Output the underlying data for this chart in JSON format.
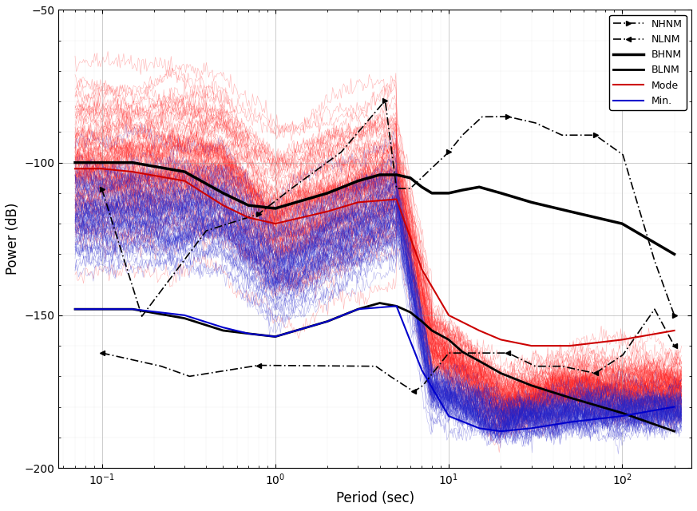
{
  "xlabel": "Period (sec)",
  "ylabel": "Power (dB)",
  "ylim": [
    -200,
    -50
  ],
  "yticks": [
    -200,
    -150,
    -100,
    -50
  ],
  "background_color": "#ffffff",
  "nhnm_color": "#000000",
  "nlnm_color": "#000000",
  "bhnm_color": "#000000",
  "blnm_color": "#000000",
  "mode_color": "#cc0000",
  "min_color": "#0000cc",
  "noise_red_color": "#ff2222",
  "noise_blue_color": "#2222cc",
  "legend_labels": [
    "NHNM",
    "NLNM",
    "BHNM",
    "BLNM",
    "Mode",
    "Min."
  ],
  "nhnm_p": [
    0.1,
    0.17,
    0.4,
    0.8,
    1.24,
    2.4,
    4.3,
    5.0,
    6.0,
    10.0,
    12.0,
    15.6,
    21.9,
    31.6,
    45.0,
    70.0,
    101.0,
    154.0,
    200.0
  ],
  "nhnm_v": [
    -108.73,
    -150.34,
    -122.31,
    -116.85,
    -108.48,
    -96.55,
    -79.68,
    -108.48,
    -108.48,
    -96.55,
    -91.0,
    -85.0,
    -84.94,
    -87.0,
    -91.0,
    -91.0,
    -97.41,
    -132.18,
    -150.0
  ],
  "nlnm_p": [
    0.1,
    0.22,
    0.32,
    0.8,
    3.8,
    4.6,
    6.3,
    7.1,
    10.0,
    22.0,
    31.6,
    45.0,
    70.0,
    101.0,
    154.0,
    200.0
  ],
  "nlnm_v": [
    -162.36,
    -166.7,
    -170.0,
    -166.4,
    -166.7,
    -170.0,
    -175.0,
    -173.0,
    -162.36,
    -162.36,
    -166.7,
    -166.7,
    -169.0,
    -163.0,
    -148.0,
    -160.0
  ],
  "bhnm_p": [
    0.07,
    0.1,
    0.15,
    0.3,
    0.5,
    0.7,
    1.0,
    2.0,
    3.0,
    4.0,
    5.0,
    6.0,
    7.0,
    8.0,
    10.0,
    12.0,
    15.0,
    20.0,
    30.0,
    50.0,
    100.0,
    200.0
  ],
  "bhnm_v": [
    -100,
    -100,
    -100,
    -103,
    -110,
    -114,
    -115,
    -110,
    -106,
    -104,
    -104,
    -105,
    -108,
    -110,
    -110,
    -109,
    -108,
    -110,
    -113,
    -116,
    -120,
    -130
  ],
  "blnm_p": [
    0.07,
    0.1,
    0.15,
    0.3,
    0.5,
    0.7,
    1.0,
    2.0,
    3.0,
    4.0,
    5.0,
    6.0,
    7.0,
    8.0,
    10.0,
    12.0,
    15.0,
    20.0,
    30.0,
    50.0,
    100.0,
    200.0
  ],
  "blnm_v": [
    -148,
    -148,
    -148,
    -151,
    -155,
    -156,
    -157,
    -152,
    -148,
    -146,
    -147,
    -149,
    -152,
    -155,
    -158,
    -162,
    -165,
    -169,
    -173,
    -177,
    -182,
    -188
  ],
  "mode_p": [
    0.07,
    0.1,
    0.15,
    0.3,
    0.5,
    0.7,
    1.0,
    2.0,
    3.0,
    5.0,
    7.0,
    10.0,
    15.0,
    20.0,
    30.0,
    50.0,
    100.0,
    200.0
  ],
  "mode_v": [
    -102,
    -102,
    -103,
    -106,
    -114,
    -118,
    -120,
    -116,
    -113,
    -112,
    -135,
    -150,
    -155,
    -158,
    -160,
    -160,
    -158,
    -155
  ],
  "min_p": [
    0.07,
    0.1,
    0.15,
    0.3,
    0.5,
    0.7,
    1.0,
    2.0,
    3.0,
    5.0,
    7.0,
    10.0,
    15.0,
    20.0,
    30.0,
    50.0,
    100.0,
    200.0
  ],
  "min_v": [
    -148,
    -148,
    -148,
    -150,
    -154,
    -156,
    -157,
    -152,
    -148,
    -147,
    -168,
    -183,
    -187,
    -188,
    -187,
    -185,
    -183,
    -180
  ]
}
